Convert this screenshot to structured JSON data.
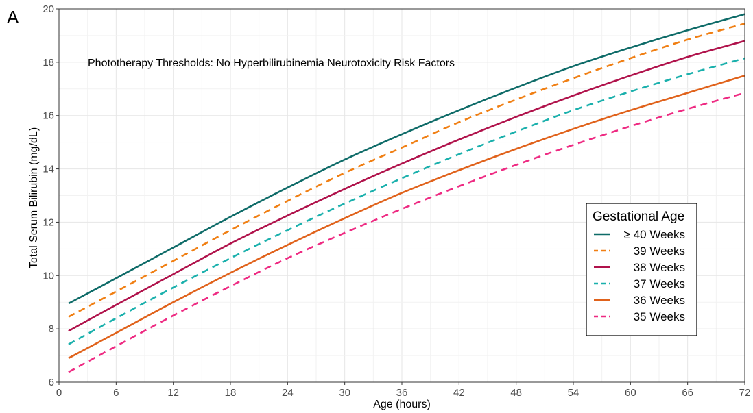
{
  "panel_label": "A",
  "chart_data": {
    "type": "line",
    "title": "",
    "annotation": "Phototherapy Thresholds:  No Hyperbilirubinemia Neurotoxicity Risk Factors",
    "xlabel": "Age (hours)",
    "ylabel": "Total Serum Bilirubin (mg/dL)",
    "xlim": [
      0,
      72
    ],
    "ylim": [
      6,
      20
    ],
    "x_ticks": [
      0,
      6,
      12,
      18,
      24,
      30,
      36,
      42,
      48,
      54,
      60,
      66,
      72
    ],
    "y_ticks": [
      6,
      8,
      10,
      12,
      14,
      16,
      18,
      20
    ],
    "grid": true,
    "legend": {
      "title": "Gestational Age",
      "placement": "right"
    },
    "x": [
      1,
      6,
      12,
      18,
      24,
      30,
      36,
      42,
      48,
      54,
      60,
      66,
      72
    ],
    "series": [
      {
        "name": "≥ 40 Weeks",
        "color": "#0e6b68",
        "dash": "solid",
        "values": [
          8.95,
          9.9,
          11.05,
          12.2,
          13.3,
          14.35,
          15.3,
          16.2,
          17.05,
          17.85,
          18.55,
          19.2,
          19.8
        ]
      },
      {
        "name": "39 Weeks",
        "color": "#f07f13",
        "dash": "dashed",
        "values": [
          8.45,
          9.4,
          10.55,
          11.7,
          12.8,
          13.85,
          14.8,
          15.75,
          16.6,
          17.4,
          18.15,
          18.85,
          19.45
        ]
      },
      {
        "name": "38 Weeks",
        "color": "#b0124b",
        "dash": "solid",
        "values": [
          7.92,
          8.9,
          10.05,
          11.2,
          12.25,
          13.25,
          14.2,
          15.1,
          15.95,
          16.75,
          17.5,
          18.2,
          18.8
        ]
      },
      {
        "name": "37 Weeks",
        "color": "#1ab0ac",
        "dash": "dashed",
        "values": [
          7.42,
          8.4,
          9.55,
          10.65,
          11.7,
          12.7,
          13.65,
          14.55,
          15.4,
          16.2,
          16.9,
          17.55,
          18.15
        ]
      },
      {
        "name": "36 Weeks",
        "color": "#e0621b",
        "dash": "solid",
        "values": [
          6.9,
          7.85,
          9.0,
          10.1,
          11.15,
          12.15,
          13.1,
          13.95,
          14.75,
          15.5,
          16.2,
          16.85,
          17.5
        ]
      },
      {
        "name": "35 Weeks",
        "color": "#ee2a82",
        "dash": "dashed",
        "values": [
          6.38,
          7.35,
          8.5,
          9.6,
          10.65,
          11.6,
          12.5,
          13.35,
          14.15,
          14.9,
          15.6,
          16.25,
          16.85
        ]
      }
    ]
  }
}
